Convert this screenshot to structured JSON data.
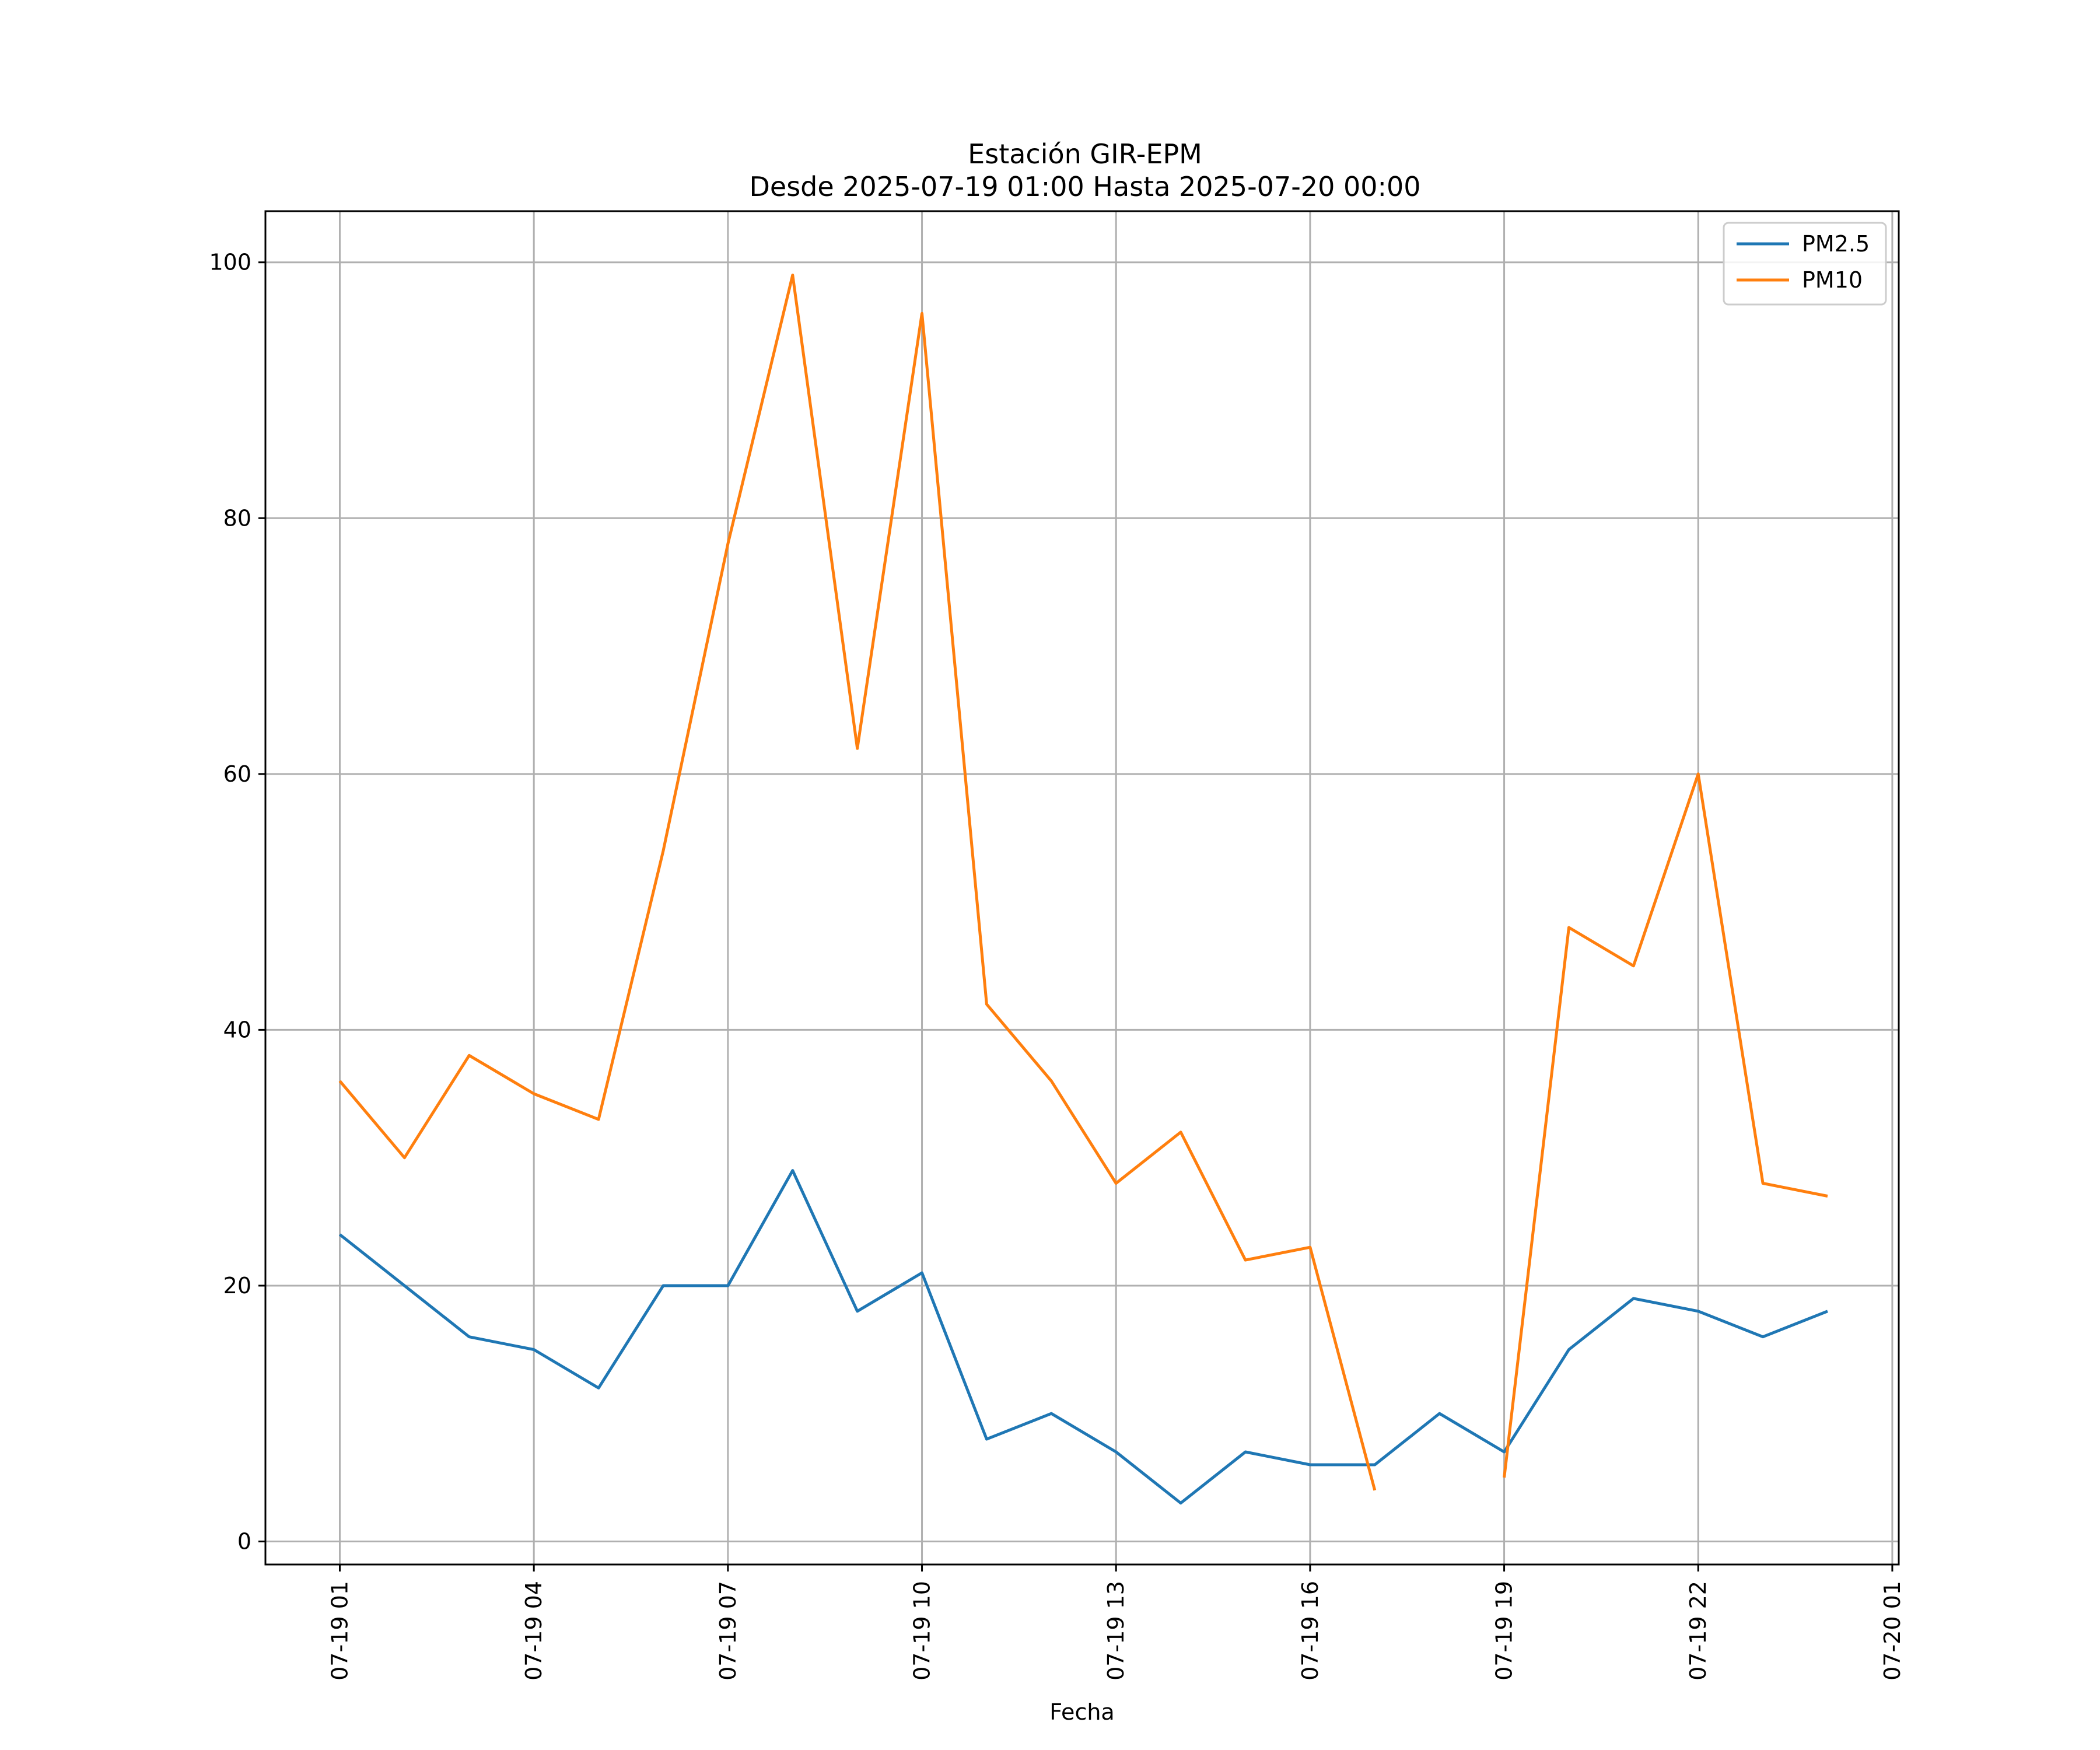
{
  "chart_data": {
    "type": "line",
    "title": "Estación GIR-EPM",
    "subtitle": "Desde 2025-07-19 01:00 Hasta 2025-07-20 00:00",
    "xlabel": "Fecha",
    "ylabel": "",
    "x_ticks": [
      {
        "hour": 1,
        "label": "07-19 01"
      },
      {
        "hour": 4,
        "label": "07-19 04"
      },
      {
        "hour": 7,
        "label": "07-19 07"
      },
      {
        "hour": 10,
        "label": "07-19 10"
      },
      {
        "hour": 13,
        "label": "07-19 13"
      },
      {
        "hour": 16,
        "label": "07-19 16"
      },
      {
        "hour": 19,
        "label": "07-19 19"
      },
      {
        "hour": 22,
        "label": "07-19 22"
      },
      {
        "hour": 25,
        "label": "07-20 01"
      }
    ],
    "y_ticks": [
      0,
      20,
      40,
      60,
      80,
      100
    ],
    "xlim": [
      -0.15,
      25.1
    ],
    "ylim": [
      -1.8,
      104
    ],
    "grid": true,
    "legend_position": "top-right",
    "series": [
      {
        "name": "PM2.5",
        "color": "#1f77b4",
        "points": [
          [
            1,
            24
          ],
          [
            2,
            20
          ],
          [
            3,
            16
          ],
          [
            4,
            15
          ],
          [
            5,
            12
          ],
          [
            6,
            20
          ],
          [
            7,
            20
          ],
          [
            8,
            29
          ],
          [
            9,
            18
          ],
          [
            10,
            21
          ],
          [
            11,
            8
          ],
          [
            12,
            10
          ],
          [
            13,
            7
          ],
          [
            14,
            3
          ],
          [
            15,
            7
          ],
          [
            16,
            6
          ],
          [
            17,
            6
          ],
          [
            18,
            10
          ],
          [
            19,
            7
          ],
          [
            20,
            15
          ],
          [
            21,
            19
          ],
          [
            22,
            18
          ],
          [
            23,
            16
          ],
          [
            24,
            18
          ]
        ]
      },
      {
        "name": "PM10",
        "color": "#ff7f0e",
        "points": [
          [
            1,
            36
          ],
          [
            2,
            30
          ],
          [
            3,
            38
          ],
          [
            4,
            35
          ],
          [
            5,
            33
          ],
          [
            6,
            54
          ],
          [
            7,
            78
          ],
          [
            8,
            99
          ],
          [
            9,
            62
          ],
          [
            10,
            96
          ],
          [
            11,
            42
          ],
          [
            12,
            36
          ],
          [
            13,
            28
          ],
          [
            14,
            32
          ],
          [
            15,
            22
          ],
          [
            16,
            23
          ],
          [
            17,
            4
          ],
          null,
          [
            19,
            5
          ],
          [
            20,
            48
          ],
          [
            21,
            45
          ],
          [
            22,
            60
          ],
          [
            23,
            28
          ],
          [
            24,
            27
          ]
        ]
      }
    ]
  }
}
